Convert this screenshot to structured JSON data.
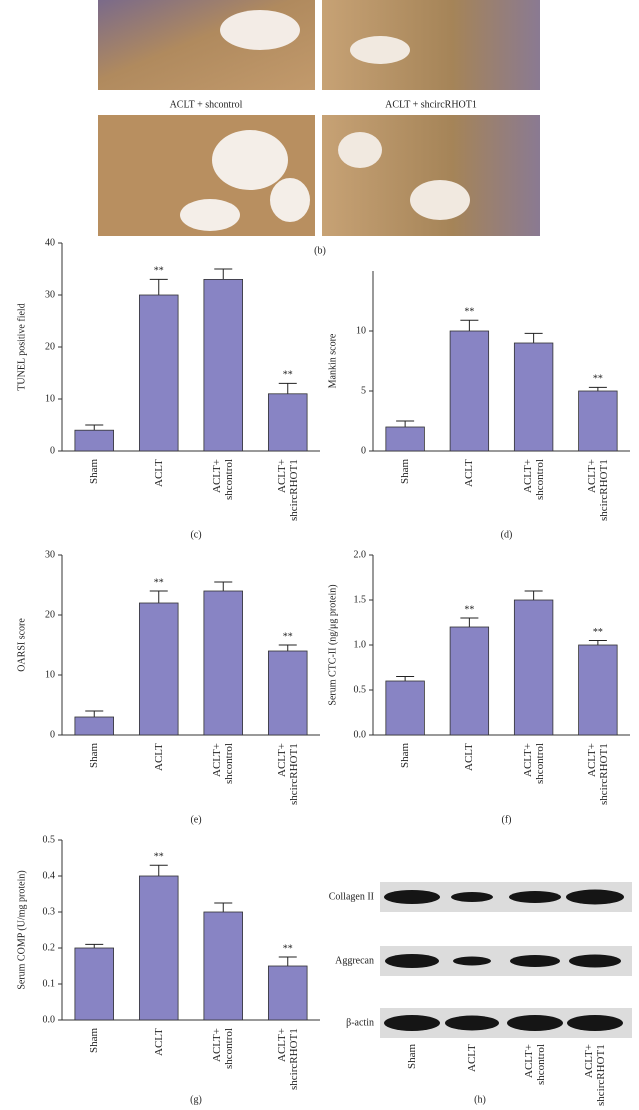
{
  "images": {
    "labels": [
      "ACLT + shcontrol",
      "ACLT + shcircRHOT1"
    ],
    "caption": "(b)"
  },
  "chart_data": [
    {
      "type": "bar",
      "panel": "(c)",
      "ylabel": "TUNEL positive field",
      "categories": [
        "Sham",
        "ACLT",
        "ACLT+ shcontrol",
        "ACLT+ shcircRHOT1"
      ],
      "values": [
        4,
        30,
        33,
        11
      ],
      "errors": [
        1,
        3,
        2,
        2
      ],
      "annotations": [
        null,
        "**",
        null,
        "**"
      ],
      "color": "#8884c4",
      "ylim": [
        0,
        40
      ],
      "yticks": [
        0,
        10,
        20,
        30,
        40
      ]
    },
    {
      "type": "bar",
      "panel": "(d)",
      "ylabel": "Mankin score",
      "categories": [
        "Sham",
        "ACLT",
        "ACLT+ shcontrol",
        "ACLT+ shcircRHOT1"
      ],
      "values": [
        2,
        10,
        9,
        5
      ],
      "errors": [
        0.5,
        0.9,
        0.8,
        0.3
      ],
      "annotations": [
        null,
        "**",
        null,
        "**"
      ],
      "color": "#8884c4",
      "ylim": [
        0,
        15
      ],
      "yticks": [
        0,
        5,
        10
      ]
    },
    {
      "type": "bar",
      "panel": "(e)",
      "ylabel": "OARSI score",
      "categories": [
        "Sham",
        "ACLT",
        "ACLT+ shcontrol",
        "ACLT+ shcircRHOT1"
      ],
      "values": [
        3,
        22,
        24,
        14
      ],
      "errors": [
        1,
        2,
        1.5,
        1
      ],
      "annotations": [
        null,
        "**",
        null,
        "**"
      ],
      "color": "#8884c4",
      "ylim": [
        0,
        30
      ],
      "yticks": [
        0,
        10,
        20,
        30
      ]
    },
    {
      "type": "bar",
      "panel": "(f)",
      "ylabel": "Serum CTC-II (ng/μg protein)",
      "categories": [
        "Sham",
        "ACLT",
        "ACLT+ shcontrol",
        "ACLT+ shcircRHOT1"
      ],
      "values": [
        0.6,
        1.2,
        1.5,
        1.0
      ],
      "errors": [
        0.05,
        0.1,
        0.1,
        0.05
      ],
      "annotations": [
        null,
        "**",
        null,
        "**"
      ],
      "color": "#8884c4",
      "ylim": [
        0,
        2
      ],
      "yticks": [
        {
          "value": 0,
          "label": "0.0"
        },
        0.5,
        {
          "value": 1,
          "label": "1.0"
        },
        1.5,
        {
          "value": 2,
          "label": "2.0"
        }
      ]
    },
    {
      "type": "bar",
      "panel": "(g)",
      "ylabel": "Serum COMP (U/mg protein)",
      "categories": [
        "Sham",
        "ACLT",
        "ACLT+ shcontrol",
        "ACLT+ shcircRHOT1"
      ],
      "values": [
        0.2,
        0.4,
        0.3,
        0.15
      ],
      "errors": [
        0.01,
        0.03,
        0.025,
        0.025
      ],
      "annotations": [
        null,
        "**",
        null,
        "**"
      ],
      "color": "#8884c4",
      "ylim": [
        0,
        0.5
      ],
      "yticks": [
        {
          "value": 0,
          "label": "0.0"
        },
        0.1,
        0.2,
        0.3,
        0.4,
        0.5
      ]
    }
  ],
  "blot": {
    "caption": "(h)",
    "rows": [
      "Collagen II",
      "Aggrecan",
      "β-actin"
    ],
    "lanes": [
      "Sham",
      "ACLT",
      "ACLT+ shcontrol",
      "ACLT+ shcircRHOT1"
    ]
  }
}
